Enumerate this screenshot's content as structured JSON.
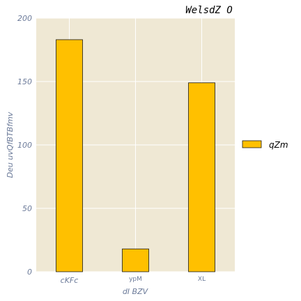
{
  "chart_data": {
    "type": "bar",
    "title": "WelsdZ O",
    "xlabel": "dI BZV",
    "ylabel": "Deu uvQfBTBfmv",
    "categories": [
      "cKFc",
      "ypM",
      "XL"
    ],
    "series": [
      {
        "name": "qZm",
        "values": [
          183,
          18,
          149
        ]
      }
    ],
    "ylim": [
      0,
      200
    ],
    "yticks": [
      0,
      50,
      100,
      150,
      200
    ],
    "grid": true,
    "legend": "right",
    "colors": {
      "bar_fill": "#ffc000",
      "bar_edge": "#1a1a1a",
      "plot_background": "#efe8d4",
      "grid": "#ffffff"
    }
  }
}
